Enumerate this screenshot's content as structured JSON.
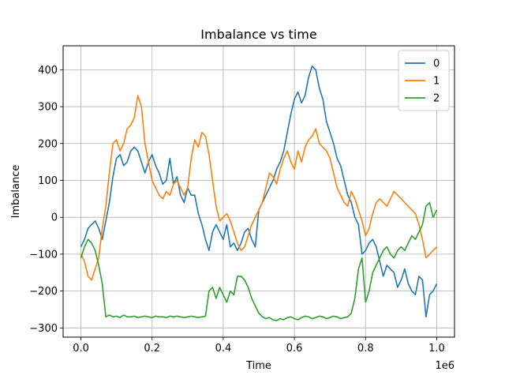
{
  "chart_data": {
    "type": "line",
    "title": "Imbalance vs time",
    "xlabel": "Time",
    "ylabel": "Imbalance",
    "x_offset_label": "1e6",
    "xlim": [
      -0.05,
      1.05
    ],
    "ylim": [
      -325,
      465
    ],
    "xticks": [
      0.0,
      0.2,
      0.4,
      0.6,
      0.8,
      1.0
    ],
    "xtick_labels": [
      "0.0",
      "0.2",
      "0.4",
      "0.6",
      "0.8",
      "1.0"
    ],
    "yticks": [
      -300,
      -200,
      -100,
      0,
      100,
      200,
      300,
      400
    ],
    "ytick_labels": [
      "−300",
      "−200",
      "−100",
      "0",
      "100",
      "200",
      "300",
      "400"
    ],
    "grid": true,
    "legend_position": "top-right",
    "series": [
      {
        "name": "0",
        "color": "#1f77b4",
        "x": [
          0.0,
          0.01,
          0.02,
          0.03,
          0.04,
          0.05,
          0.06,
          0.07,
          0.08,
          0.09,
          0.1,
          0.11,
          0.12,
          0.13,
          0.14,
          0.15,
          0.16,
          0.17,
          0.18,
          0.19,
          0.2,
          0.21,
          0.22,
          0.23,
          0.24,
          0.25,
          0.26,
          0.27,
          0.28,
          0.29,
          0.3,
          0.31,
          0.32,
          0.33,
          0.34,
          0.35,
          0.36,
          0.37,
          0.38,
          0.39,
          0.4,
          0.41,
          0.42,
          0.43,
          0.44,
          0.45,
          0.46,
          0.47,
          0.48,
          0.49,
          0.5,
          0.51,
          0.52,
          0.53,
          0.54,
          0.55,
          0.56,
          0.57,
          0.58,
          0.59,
          0.6,
          0.61,
          0.62,
          0.63,
          0.64,
          0.65,
          0.66,
          0.67,
          0.68,
          0.69,
          0.7,
          0.71,
          0.72,
          0.73,
          0.74,
          0.75,
          0.76,
          0.77,
          0.78,
          0.79,
          0.8,
          0.81,
          0.82,
          0.83,
          0.84,
          0.85,
          0.86,
          0.87,
          0.88,
          0.89,
          0.9,
          0.91,
          0.92,
          0.93,
          0.94,
          0.95,
          0.96,
          0.97,
          0.98,
          0.99,
          1.0
        ],
        "values": [
          -80,
          -60,
          -30,
          -20,
          -10,
          -30,
          -60,
          -10,
          40,
          110,
          160,
          170,
          140,
          150,
          180,
          190,
          180,
          150,
          120,
          150,
          170,
          140,
          120,
          90,
          100,
          160,
          90,
          110,
          60,
          40,
          80,
          60,
          60,
          10,
          -20,
          -60,
          -90,
          -40,
          -20,
          -40,
          -60,
          -20,
          -80,
          -70,
          -90,
          -70,
          -40,
          -30,
          -60,
          -80,
          20,
          40,
          60,
          80,
          100,
          130,
          150,
          180,
          230,
          280,
          320,
          340,
          310,
          330,
          380,
          410,
          400,
          350,
          320,
          260,
          230,
          200,
          160,
          140,
          100,
          60,
          40,
          0,
          -20,
          -100,
          -90,
          -70,
          -60,
          -80,
          -120,
          -160,
          -130,
          -140,
          -150,
          -190,
          -170,
          -140,
          -180,
          -200,
          -210,
          -160,
          -170,
          -270,
          -210,
          -200,
          -180
        ]
      },
      {
        "name": "1",
        "color": "#ff7f0e",
        "x": [
          0.0,
          0.01,
          0.02,
          0.03,
          0.04,
          0.05,
          0.06,
          0.07,
          0.08,
          0.09,
          0.1,
          0.11,
          0.12,
          0.13,
          0.14,
          0.15,
          0.16,
          0.17,
          0.18,
          0.19,
          0.2,
          0.21,
          0.22,
          0.23,
          0.24,
          0.25,
          0.26,
          0.27,
          0.28,
          0.29,
          0.3,
          0.31,
          0.32,
          0.33,
          0.34,
          0.35,
          0.36,
          0.37,
          0.38,
          0.39,
          0.4,
          0.41,
          0.42,
          0.43,
          0.44,
          0.45,
          0.46,
          0.47,
          0.48,
          0.49,
          0.5,
          0.51,
          0.52,
          0.53,
          0.54,
          0.55,
          0.56,
          0.57,
          0.58,
          0.59,
          0.6,
          0.61,
          0.62,
          0.63,
          0.64,
          0.65,
          0.66,
          0.67,
          0.68,
          0.69,
          0.7,
          0.71,
          0.72,
          0.73,
          0.74,
          0.75,
          0.76,
          0.77,
          0.78,
          0.79,
          0.8,
          0.81,
          0.82,
          0.83,
          0.84,
          0.85,
          0.86,
          0.87,
          0.88,
          0.89,
          0.9,
          0.91,
          0.92,
          0.93,
          0.94,
          0.95,
          0.96,
          0.97,
          0.98,
          0.99,
          1.0
        ],
        "values": [
          -100,
          -120,
          -160,
          -170,
          -140,
          -110,
          -30,
          30,
          120,
          200,
          210,
          180,
          200,
          240,
          250,
          270,
          330,
          300,
          200,
          150,
          100,
          80,
          60,
          50,
          70,
          60,
          90,
          100,
          80,
          60,
          80,
          160,
          210,
          190,
          230,
          220,
          170,
          100,
          30,
          -10,
          0,
          10,
          -10,
          -40,
          -70,
          -90,
          -80,
          -50,
          -20,
          0,
          20,
          40,
          80,
          120,
          110,
          90,
          130,
          160,
          180,
          150,
          130,
          180,
          150,
          190,
          210,
          220,
          240,
          200,
          190,
          180,
          160,
          120,
          80,
          60,
          40,
          30,
          70,
          50,
          20,
          -10,
          -50,
          -30,
          10,
          40,
          50,
          40,
          30,
          50,
          70,
          60,
          50,
          40,
          30,
          20,
          10,
          -20,
          -60,
          -110,
          -100,
          -90,
          -80
        ]
      },
      {
        "name": "2",
        "color": "#2ca02c",
        "x": [
          0.0,
          0.01,
          0.02,
          0.03,
          0.04,
          0.05,
          0.06,
          0.07,
          0.08,
          0.09,
          0.1,
          0.11,
          0.12,
          0.13,
          0.14,
          0.15,
          0.16,
          0.17,
          0.18,
          0.19,
          0.2,
          0.21,
          0.22,
          0.23,
          0.24,
          0.25,
          0.26,
          0.27,
          0.28,
          0.29,
          0.3,
          0.31,
          0.32,
          0.33,
          0.34,
          0.35,
          0.36,
          0.37,
          0.38,
          0.39,
          0.4,
          0.41,
          0.42,
          0.43,
          0.44,
          0.45,
          0.46,
          0.47,
          0.48,
          0.49,
          0.5,
          0.51,
          0.52,
          0.53,
          0.54,
          0.55,
          0.56,
          0.57,
          0.58,
          0.59,
          0.6,
          0.61,
          0.62,
          0.63,
          0.64,
          0.65,
          0.66,
          0.67,
          0.68,
          0.69,
          0.7,
          0.71,
          0.72,
          0.73,
          0.74,
          0.75,
          0.76,
          0.77,
          0.78,
          0.79,
          0.8,
          0.81,
          0.82,
          0.83,
          0.84,
          0.85,
          0.86,
          0.87,
          0.88,
          0.89,
          0.9,
          0.91,
          0.92,
          0.93,
          0.94,
          0.95,
          0.96,
          0.97,
          0.98,
          0.99,
          1.0
        ],
        "values": [
          -110,
          -80,
          -60,
          -70,
          -90,
          -130,
          -180,
          -270,
          -265,
          -270,
          -268,
          -272,
          -265,
          -270,
          -270,
          -268,
          -272,
          -270,
          -268,
          -270,
          -272,
          -268,
          -270,
          -270,
          -272,
          -268,
          -270,
          -268,
          -270,
          -272,
          -270,
          -268,
          -270,
          -272,
          -270,
          -268,
          -200,
          -190,
          -220,
          -190,
          -210,
          -230,
          -200,
          -210,
          -160,
          -160,
          -170,
          -190,
          -220,
          -240,
          -260,
          -270,
          -275,
          -272,
          -278,
          -280,
          -275,
          -278,
          -272,
          -270,
          -275,
          -278,
          -272,
          -268,
          -270,
          -275,
          -272,
          -268,
          -270,
          -275,
          -272,
          -268,
          -270,
          -275,
          -272,
          -270,
          -260,
          -220,
          -140,
          -110,
          -230,
          -200,
          -150,
          -130,
          -110,
          -90,
          -80,
          -100,
          -110,
          -90,
          -80,
          -90,
          -70,
          -50,
          -60,
          -40,
          -20,
          30,
          40,
          0,
          20
        ]
      }
    ]
  }
}
